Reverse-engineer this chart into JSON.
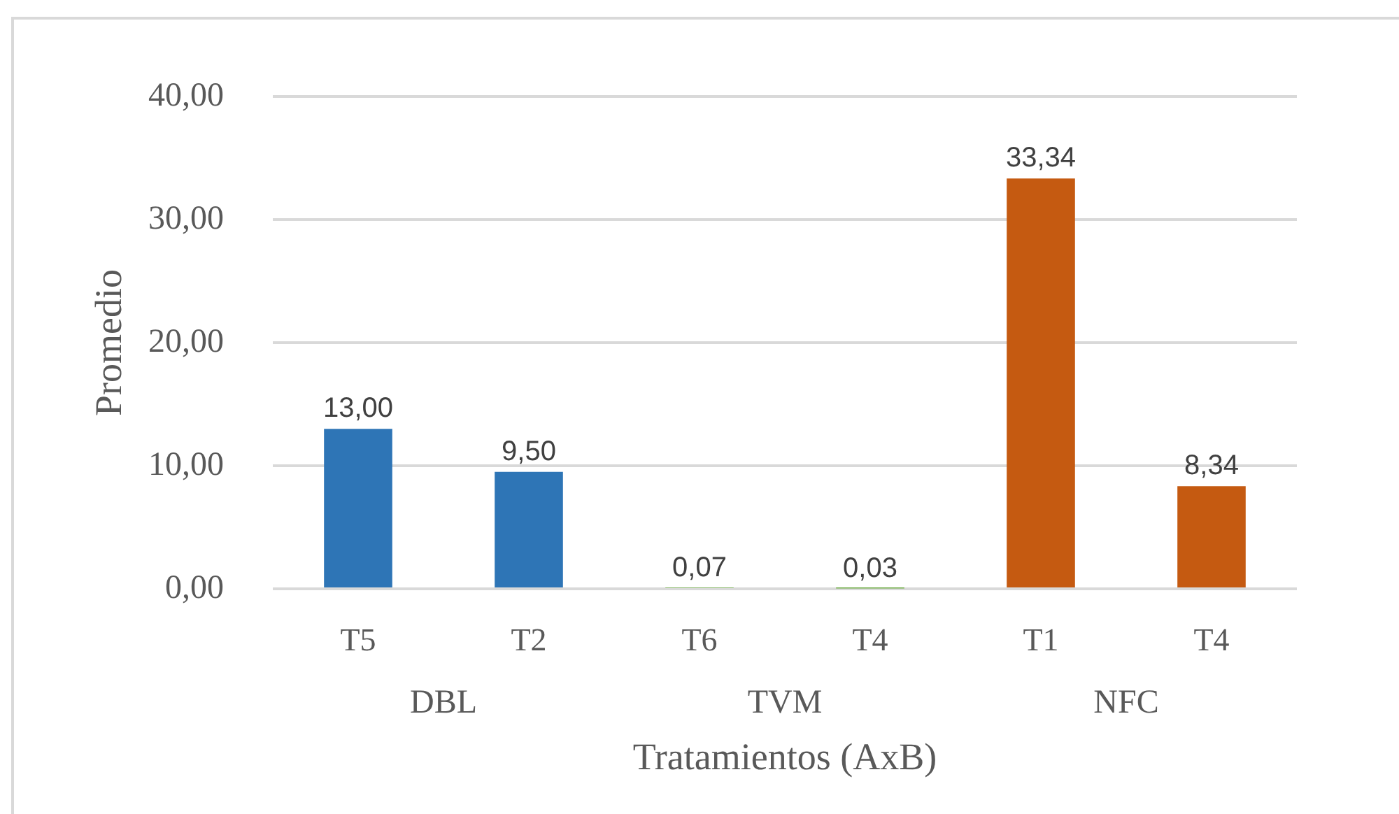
{
  "chart_data": {
    "type": "bar",
    "xlabel": "Tratamientos (AxB)",
    "ylabel": "Promedio",
    "categories": [
      "T5",
      "T2",
      "T6",
      "T4",
      "T1",
      "T4"
    ],
    "values": [
      13.0,
      9.5,
      0.07,
      0.03,
      33.34,
      8.34
    ],
    "colors": [
      "#2e75b6",
      "#2e75b6",
      "#70ad47",
      "#70ad47",
      "#c55a11",
      "#c55a11"
    ],
    "value_labels": [
      "13,00",
      "9,50",
      "0,07",
      "0,03",
      "33,34",
      "8,34"
    ],
    "annotations": [
      "DBL",
      "TVM",
      "NFC"
    ],
    "ylim": [
      0,
      40
    ],
    "yticks": [
      {
        "value": 0,
        "label": "0,00"
      },
      {
        "value": 10,
        "label": "10,00"
      },
      {
        "value": 20,
        "label": "20,00"
      },
      {
        "value": 30,
        "label": "30,00"
      },
      {
        "value": 40,
        "label": "40,00"
      }
    ],
    "grid": "y"
  }
}
